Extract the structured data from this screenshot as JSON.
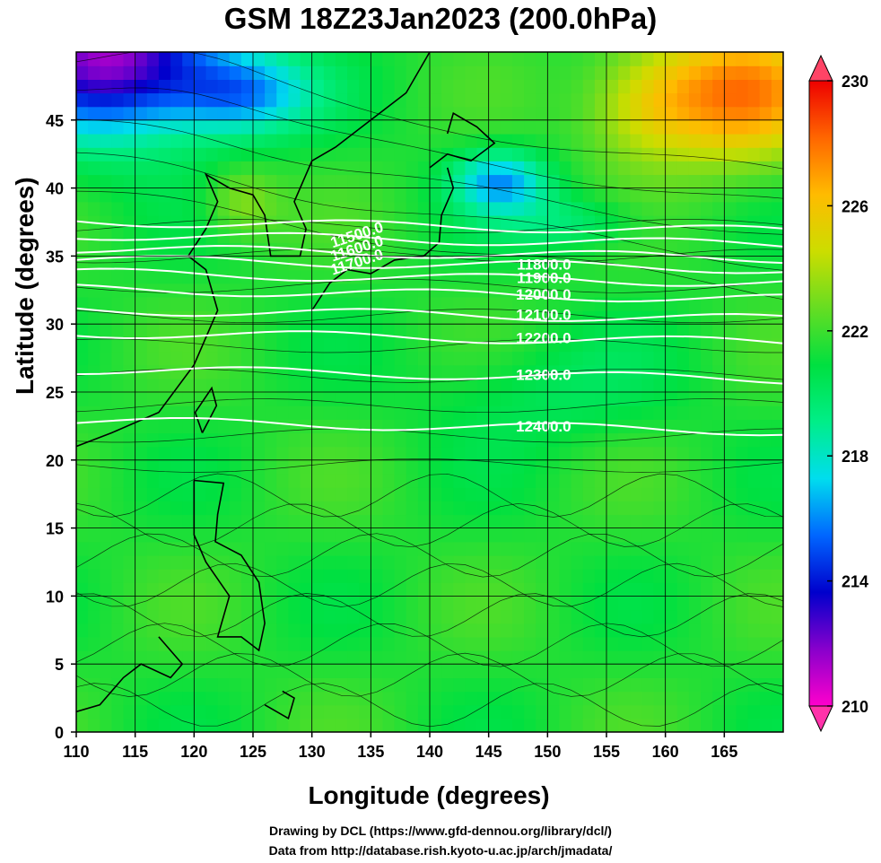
{
  "title": "GSM 18Z23Jan2023 (200.0hPa)",
  "xlabel": "Longitude (degrees)",
  "ylabel": "Latitude  (degrees)",
  "credits": [
    "Drawing by DCL (https://www.gfd-dennou.org/library/dcl/)",
    "Data from http://database.rish.kyoto-u.ac.jp/arch/jmadata/"
  ],
  "chart_data": {
    "type": "heatmap",
    "xlim": [
      110,
      170
    ],
    "ylim": [
      0,
      50
    ],
    "x_ticks": [
      "110",
      "115",
      "120",
      "125",
      "130",
      "135",
      "140",
      "145",
      "150",
      "155",
      "160",
      "165"
    ],
    "y_ticks": [
      "0",
      "5",
      "10",
      "15",
      "20",
      "25",
      "30",
      "35",
      "40",
      "45"
    ],
    "grid": true,
    "colorbar": {
      "min": 210,
      "max": 230,
      "tick_labels": [
        "210",
        "214",
        "218",
        "222",
        "226",
        "230"
      ],
      "colors": [
        "#ff00cc",
        "#8800cc",
        "#0000cc",
        "#0066ff",
        "#00ddee",
        "#00ee88",
        "#00e040",
        "#66dd22",
        "#ccdd00",
        "#ffbb00",
        "#ff6600",
        "#ee0000"
      ]
    },
    "contours": [
      {
        "label": "11500.0",
        "lat": 37.2
      },
      {
        "label": "11600.0",
        "lat": 36.2
      },
      {
        "label": "11700.0",
        "lat": 35.2
      },
      {
        "label": "11800.0",
        "lat": 34.4
      },
      {
        "label": "11900.0",
        "lat": 33.4
      },
      {
        "label": "12000.0",
        "lat": 32.2
      },
      {
        "label": "12100.0",
        "lat": 30.7
      },
      {
        "label": "12200.0",
        "lat": 29.0
      },
      {
        "label": "12300.0",
        "lat": 26.3
      },
      {
        "label": "12400.0",
        "lat": 22.5
      }
    ]
  }
}
